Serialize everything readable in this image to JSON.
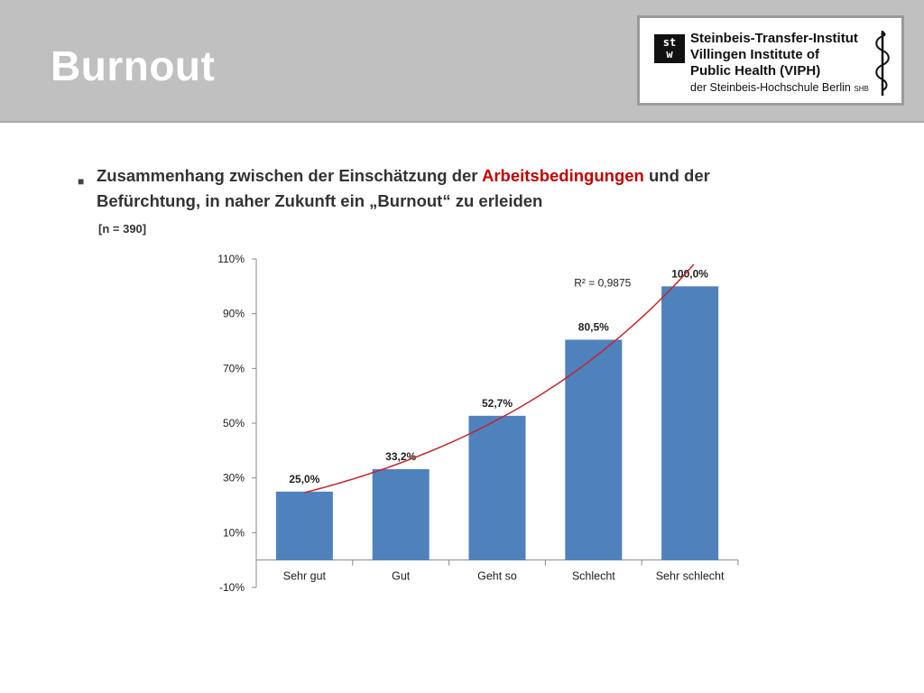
{
  "slide": {
    "title": "Burnout",
    "bullet_prefix": "Zusammenhang zwischen der Einschätzung der ",
    "bullet_highlight": "Arbeitsbedingungen",
    "bullet_suffix": " und der Befürchtung, in naher Zukunft ein „Burnout“ zu erleiden",
    "sample_note": "[n = 390]"
  },
  "logo": {
    "mark_line1": "st",
    "mark_line2": "w",
    "line1": "Steinbeis-Transfer-Institut",
    "line2": "Villingen Institute of",
    "line3": "Public Health (VIPH)",
    "sub": "der Steinbeis-Hochschule Berlin",
    "sub_small": "SHB"
  },
  "colors": {
    "header_bg": "#c0c0c0",
    "bar": "#4f81bd",
    "trend": "#c0262d",
    "highlight": "#c00000"
  },
  "chart_data": {
    "type": "bar",
    "categories": [
      "Sehr gut",
      "Gut",
      "Geht so",
      "Schlecht",
      "Sehr schlecht"
    ],
    "values": [
      25.0,
      33.2,
      52.7,
      80.5,
      100.0
    ],
    "value_labels": [
      "25,0%",
      "33,2%",
      "52,7%",
      "80,5%",
      "100,0%"
    ],
    "ylim": [
      -10,
      110
    ],
    "yticks": [
      110,
      90,
      70,
      50,
      30,
      10,
      -10
    ],
    "ytick_labels": [
      "110%",
      "90%",
      "70%",
      "50%",
      "30%",
      "10%",
      "-10%"
    ],
    "category_axis_at": 0,
    "trendline": {
      "type": "exponential",
      "r2_label": "R² = 0,9875"
    },
    "grid": false,
    "legend": "none"
  }
}
